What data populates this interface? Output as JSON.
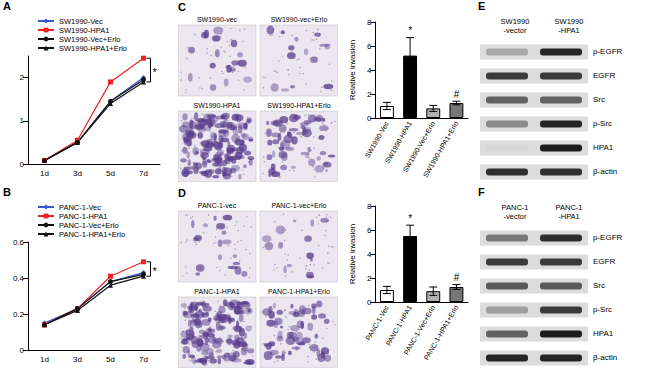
{
  "chart_data": [
    {
      "panel": "A",
      "type": "line",
      "categories": [
        "1d",
        "3d",
        "5d",
        "7d"
      ],
      "ylim": [
        0,
        2.5
      ],
      "yticks": [
        0,
        1,
        2
      ],
      "legend": "top",
      "series": [
        {
          "name": "SW1990-Vec",
          "color": "#3355cc",
          "marker": "diamond",
          "line_style": "solid",
          "values": [
            0.08,
            0.5,
            1.45,
            2.0
          ]
        },
        {
          "name": "SW1990-HPA1",
          "color": "#ee2222",
          "marker": "square",
          "line_style": "solid",
          "values": [
            0.08,
            0.55,
            1.9,
            2.45
          ]
        },
        {
          "name": "SW1990-Vec+Erlo",
          "color": "#111111",
          "marker": "circle",
          "line_style": "solid",
          "values": [
            0.08,
            0.5,
            1.45,
            1.95
          ]
        },
        {
          "name": "SW1990-HPA1+Erlo",
          "color": "#111111",
          "marker": "triangle",
          "line_style": "solid",
          "values": [
            0.08,
            0.5,
            1.4,
            1.9
          ]
        }
      ],
      "annotations": [
        {
          "text": "*",
          "x": "7d"
        }
      ]
    },
    {
      "panel": "B",
      "type": "line",
      "categories": [
        "1d",
        "3d",
        "5d",
        "7d"
      ],
      "ylim": [
        0,
        0.6
      ],
      "yticks": [
        0,
        0.2,
        0.4,
        0.6
      ],
      "legend": "top",
      "series": [
        {
          "name": "PANC-1-Vec",
          "color": "#3355cc",
          "marker": "diamond",
          "line_style": "solid",
          "values": [
            0.15,
            0.23,
            0.38,
            0.43
          ]
        },
        {
          "name": "PANC-1-HPA1",
          "color": "#ee2222",
          "marker": "square",
          "line_style": "solid",
          "values": [
            0.14,
            0.23,
            0.41,
            0.49
          ]
        },
        {
          "name": "PANC-1-Vec+Erlo",
          "color": "#111111",
          "marker": "circle",
          "line_style": "solid",
          "values": [
            0.14,
            0.23,
            0.38,
            0.42
          ]
        },
        {
          "name": "PANC-1-HPA1+Erlo",
          "color": "#111111",
          "marker": "triangle",
          "line_style": "solid",
          "values": [
            0.14,
            0.22,
            0.36,
            0.41
          ]
        }
      ],
      "annotations": [
        {
          "text": "*",
          "x": "7d"
        }
      ]
    },
    {
      "type": "bar",
      "ylabel": "Relative invasion",
      "categories": [
        "SW1990-Vec",
        "SW1990-HPA1",
        "SW1990-Vec+Erlo",
        "SW1990-HPA1+Erlo"
      ],
      "values": [
        1.0,
        5.2,
        0.8,
        1.25
      ],
      "errors": [
        0.3,
        1.5,
        0.25,
        0.15
      ],
      "colors": [
        "#ffffff",
        "#000000",
        "#b0b0b0",
        "#777777"
      ],
      "ylim": [
        0,
        8
      ],
      "yticks": [
        0,
        2,
        4,
        6,
        8
      ],
      "annotations": [
        {
          "text": "*",
          "x": "SW1990-HPA1"
        },
        {
          "text": "#",
          "x": "SW1990-HPA1+Erlo"
        }
      ]
    },
    {
      "type": "bar",
      "ylabel": "Relative invasion",
      "categories": [
        "PANC-1-Vec",
        "PANC-1-HPA1",
        "PANC-1-Vec+Erlo",
        "PANC-1-HPA1+Erlo"
      ],
      "values": [
        1.0,
        5.5,
        0.9,
        1.25
      ],
      "errors": [
        0.3,
        0.9,
        0.35,
        0.2
      ],
      "colors": [
        "#ffffff",
        "#000000",
        "#b0b0b0",
        "#777777"
      ],
      "ylim": [
        0,
        8
      ],
      "yticks": [
        0,
        2,
        4,
        6,
        8
      ],
      "annotations": [
        {
          "text": "*",
          "x": "PANC-1-HPA1"
        },
        {
          "text": "#",
          "x": "PANC-1-HPA1+Erlo"
        }
      ]
    }
  ],
  "micrographs": [
    {
      "panel": "C",
      "images": [
        "SW1990-vec",
        "SW1990-vec+Erlo",
        "SW1990-HPA1",
        "SW1990-HPA1+Erlo"
      ]
    },
    {
      "panel": "D",
      "images": [
        "PANC-1-vec",
        "PANC-1-vec+Erlo",
        "PANC-1-HPA1",
        "PANC-1-HPA1+Erlo"
      ]
    }
  ],
  "blots": [
    {
      "panel": "E",
      "columns": [
        "SW1990-vector",
        "SW1990-HPA1"
      ],
      "rows": [
        {
          "label": "p-EGFR",
          "intensities": [
            0.25,
            0.9
          ]
        },
        {
          "label": "EGFR",
          "intensities": [
            0.8,
            0.8
          ]
        },
        {
          "label": "Src",
          "intensities": [
            0.6,
            0.6
          ]
        },
        {
          "label": "p-Src",
          "intensities": [
            0.4,
            0.9
          ]
        },
        {
          "label": "HPA1",
          "intensities": [
            0.02,
            0.95
          ]
        },
        {
          "label": "β-actin",
          "intensities": [
            0.85,
            0.85
          ]
        }
      ]
    },
    {
      "panel": "F",
      "columns": [
        "PANC-1-vector",
        "PANC-1-HPA1"
      ],
      "rows": [
        {
          "label": "p-EGFR",
          "intensities": [
            0.5,
            0.85
          ]
        },
        {
          "label": "EGFR",
          "intensities": [
            0.8,
            0.8
          ]
        },
        {
          "label": "Src",
          "intensities": [
            0.65,
            0.65
          ]
        },
        {
          "label": "p-Src",
          "intensities": [
            0.3,
            0.8
          ]
        },
        {
          "label": "HPA1",
          "intensities": [
            0.6,
            0.95
          ]
        },
        {
          "label": "β-actin",
          "intensities": [
            0.9,
            0.9
          ]
        }
      ]
    }
  ]
}
